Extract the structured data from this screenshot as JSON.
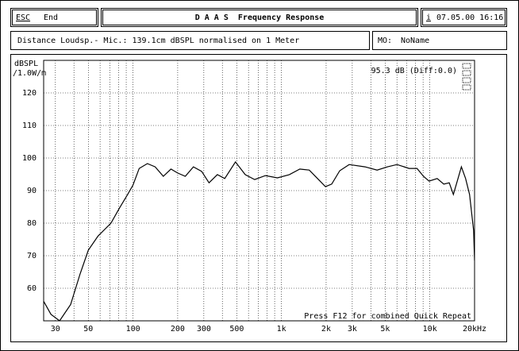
{
  "header": {
    "esc_key": "ESC",
    "esc_action": "End",
    "title": "D A A S  Frequency Response",
    "info_key": "i",
    "datetime": "07.05.00 16:16"
  },
  "info": {
    "distance": "Distance Loudsp.- Mic.: 139.1cm dBSPL normalised on 1 Meter",
    "memory_key": "MO:",
    "memory_name": "NoName"
  },
  "chart_data": {
    "type": "line",
    "y_label": "dBSPL",
    "y_unit": "/1.0W/m",
    "annotation": "95.3 dB (Diff:0.0)",
    "footer": "Press F12 for combined Quick Repeat",
    "log_x": true,
    "grid": true,
    "xlim": [
      25,
      20000
    ],
    "ylim": [
      50,
      130
    ],
    "xticks": [
      30,
      50,
      100,
      200,
      300,
      500,
      {
        "value": 1000,
        "label": "1k"
      },
      {
        "value": 2000,
        "label": "2k"
      },
      {
        "value": 3000,
        "label": "3k"
      },
      {
        "value": 5000,
        "label": "5k"
      },
      {
        "value": 10000,
        "label": "10k"
      },
      {
        "value": 20000,
        "label": "20kHz"
      }
    ],
    "xminor": [
      40,
      60,
      70,
      80,
      90,
      400,
      600,
      700,
      800,
      900,
      4000,
      6000,
      7000,
      8000,
      9000
    ],
    "yticks": [
      60,
      70,
      80,
      90,
      100,
      110,
      120
    ],
    "series": [
      {
        "color": "#000000",
        "x": [
          25,
          28,
          32,
          38,
          44,
          50,
          58,
          71,
          81,
          92,
          100,
          110,
          125,
          141,
          160,
          180,
          200,
          225,
          255,
          290,
          325,
          370,
          415,
          490,
          570,
          660,
          780,
          940,
          1130,
          1330,
          1540,
          1750,
          1980,
          2180,
          2470,
          2860,
          3660,
          4410,
          5180,
          6010,
          7240,
          8190,
          9050,
          9880,
          11200,
          12400,
          13500,
          14400,
          15300,
          16300,
          17400,
          18500,
          19700,
          20000
        ],
        "values": [
          56,
          52,
          50,
          55,
          64.4,
          71.7,
          76,
          80,
          84.6,
          88.8,
          91.7,
          96.8,
          98.3,
          97.3,
          94.4,
          96.6,
          95.4,
          94.4,
          97.3,
          95.9,
          92.4,
          94.9,
          93.7,
          98.8,
          94.9,
          93.4,
          94.6,
          93.9,
          94.9,
          96.6,
          96.3,
          93.7,
          91.2,
          92,
          96.1,
          98,
          97.3,
          96.3,
          97.3,
          98,
          96.8,
          96.8,
          94.4,
          92.9,
          93.7,
          92,
          92.4,
          88.8,
          92.9,
          97.3,
          93.7,
          88.8,
          77.8,
          68.5
        ]
      }
    ]
  }
}
